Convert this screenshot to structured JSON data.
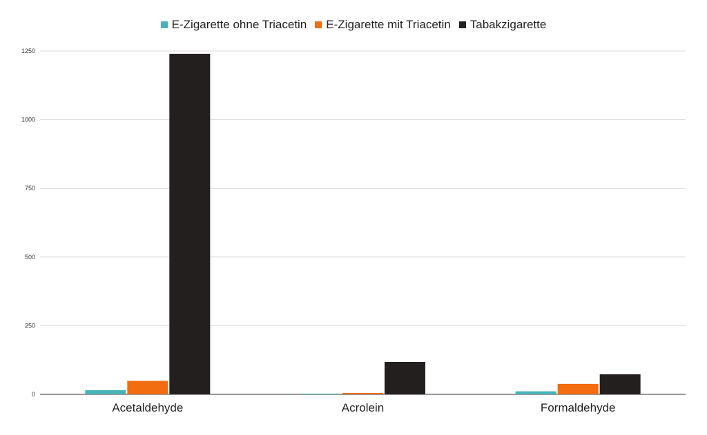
{
  "chart_data": {
    "type": "bar",
    "title": "",
    "xlabel": "",
    "ylabel": "",
    "categories": [
      "Acetaldehyde",
      "Acrolein",
      "Formaldehyde"
    ],
    "series": [
      {
        "name": "E-Zigarette ohne Triacetin",
        "color": "#46b3b8",
        "values": [
          15,
          1,
          11
        ]
      },
      {
        "name": "E-Zigarette mit Triacetin",
        "color": "#f26d0f",
        "values": [
          49,
          5,
          38
        ]
      },
      {
        "name": "Tabakzigarette",
        "color": "#231f1f",
        "values": [
          1240,
          118,
          73
        ]
      }
    ],
    "ylim": [
      0,
      1250
    ],
    "yticks": [
      "0",
      "250",
      "500",
      "750",
      "1000",
      "1250"
    ],
    "grid": true,
    "legend_position": "top-center"
  }
}
